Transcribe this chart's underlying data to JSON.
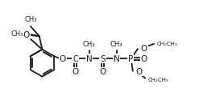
{
  "bg_color": "#ffffff",
  "line_color": "#1a1a1a",
  "lw": 1.3,
  "font_size": 7.0,
  "fig_width": 3.14,
  "fig_height": 1.64
}
